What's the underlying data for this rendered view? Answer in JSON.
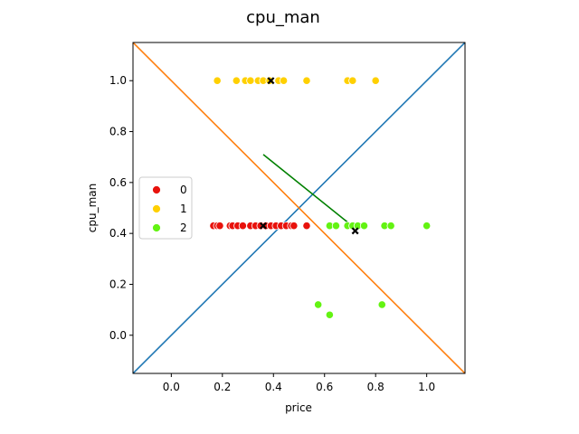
{
  "chart_data": {
    "type": "scatter",
    "title": "cpu_man",
    "xlabel": "price",
    "ylabel": "cpu_man",
    "xlim": [
      -0.15,
      1.15
    ],
    "ylim": [
      -0.15,
      1.15
    ],
    "xticks": [
      "0.0",
      "0.2",
      "0.4",
      "0.6",
      "0.8",
      "1.0"
    ],
    "yticks": [
      "0.0",
      "0.2",
      "0.4",
      "0.6",
      "0.8",
      "1.0"
    ],
    "grid": false,
    "legend_position": "center-left",
    "series": [
      {
        "name": "0",
        "color": "#e8120c",
        "points": [
          [
            0.165,
            0.43
          ],
          [
            0.18,
            0.43
          ],
          [
            0.19,
            0.43
          ],
          [
            0.23,
            0.43
          ],
          [
            0.24,
            0.43
          ],
          [
            0.26,
            0.43
          ],
          [
            0.28,
            0.43
          ],
          [
            0.31,
            0.43
          ],
          [
            0.33,
            0.43
          ],
          [
            0.35,
            0.43
          ],
          [
            0.37,
            0.43
          ],
          [
            0.39,
            0.43
          ],
          [
            0.41,
            0.43
          ],
          [
            0.43,
            0.43
          ],
          [
            0.45,
            0.43
          ],
          [
            0.47,
            0.43
          ],
          [
            0.48,
            0.43
          ],
          [
            0.53,
            0.43
          ]
        ]
      },
      {
        "name": "1",
        "color": "#ffd000",
        "points": [
          [
            0.18,
            1.0
          ],
          [
            0.255,
            1.0
          ],
          [
            0.29,
            1.0
          ],
          [
            0.31,
            1.0
          ],
          [
            0.34,
            1.0
          ],
          [
            0.36,
            1.0
          ],
          [
            0.385,
            1.0
          ],
          [
            0.42,
            1.0
          ],
          [
            0.44,
            1.0
          ],
          [
            0.53,
            1.0
          ],
          [
            0.69,
            1.0
          ],
          [
            0.71,
            1.0
          ],
          [
            0.8,
            1.0
          ]
        ]
      },
      {
        "name": "2",
        "color": "#63f312",
        "points": [
          [
            0.62,
            0.43
          ],
          [
            0.645,
            0.43
          ],
          [
            0.69,
            0.43
          ],
          [
            0.71,
            0.43
          ],
          [
            0.73,
            0.43
          ],
          [
            0.755,
            0.43
          ],
          [
            0.835,
            0.43
          ],
          [
            0.86,
            0.43
          ],
          [
            1.0,
            0.43
          ],
          [
            0.575,
            0.12
          ],
          [
            0.62,
            0.08
          ],
          [
            0.825,
            0.12
          ]
        ]
      }
    ],
    "centroids": [
      [
        0.36,
        0.43
      ],
      [
        0.39,
        1.0
      ],
      [
        0.72,
        0.41
      ]
    ],
    "lines": [
      {
        "color": "#1f77b4",
        "points": [
          [
            -0.15,
            -0.15
          ],
          [
            1.15,
            1.15
          ]
        ]
      },
      {
        "color": "#ff7f0e",
        "points": [
          [
            -0.15,
            1.15
          ],
          [
            1.15,
            -0.15
          ]
        ]
      },
      {
        "color": "#008000",
        "points": [
          [
            0.36,
            0.71
          ],
          [
            0.72,
            0.42
          ]
        ]
      }
    ]
  }
}
